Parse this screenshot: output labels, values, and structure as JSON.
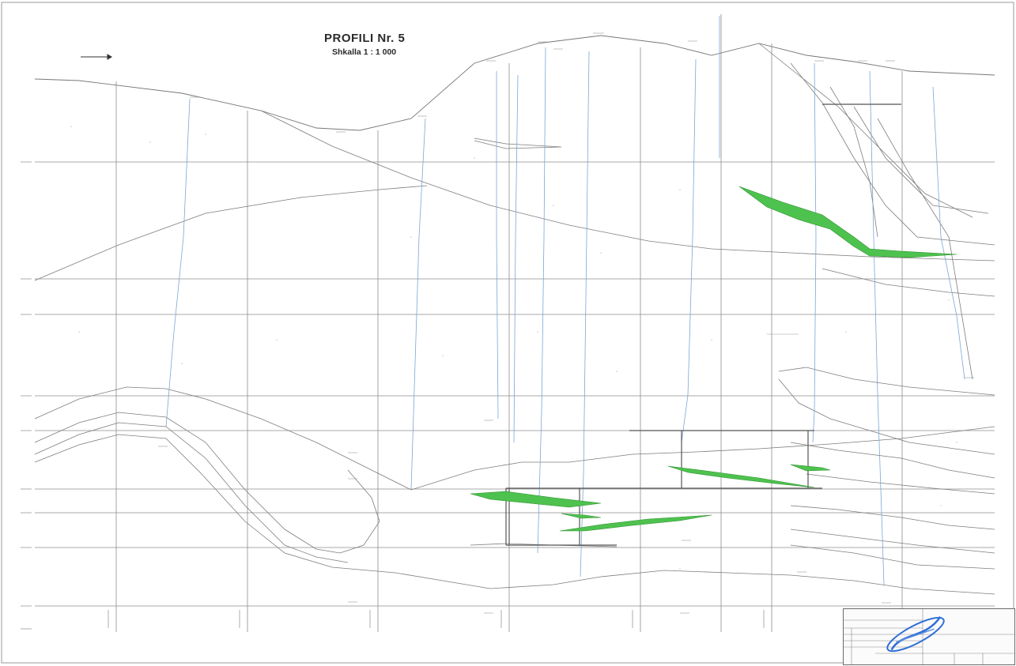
{
  "drawing": {
    "title": "PROFILI Nr. 5",
    "scale": "Shkalla 1 : 1 000"
  },
  "colors": {
    "grid": "#8c8c8c",
    "terrain": "#777777",
    "boreholes": "#7aa6d6",
    "ore_body": "#4ec24e",
    "ore_body_edge": "#2f8f2f",
    "stamp": "#2f6fd6"
  },
  "icons": [
    "north-arrow-icon",
    "approval-stamp-icon"
  ]
}
